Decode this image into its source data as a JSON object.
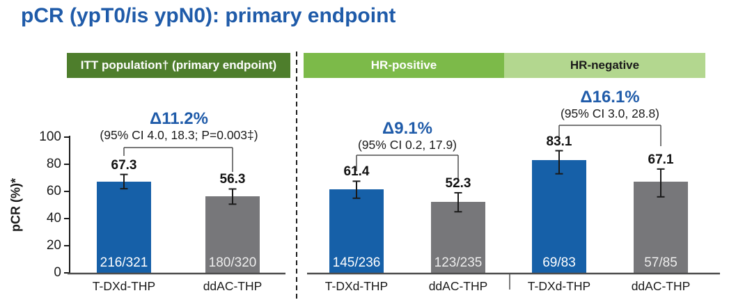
{
  "page": {
    "title": "pCR (ypT0/is ypN0): primary endpoint"
  },
  "panels": [
    {
      "id": "itt",
      "label": "ITT population† (primary endpoint)",
      "color": "#4e7e2c",
      "text_color": "#ffffff"
    },
    {
      "id": "hr-positive",
      "label": "HR-positive",
      "color": "#7cba49",
      "text_color": "#ffffff"
    },
    {
      "id": "hr-negative",
      "label": "HR-negative",
      "color": "#b3d78f",
      "text_color": "#1a1a1a"
    }
  ],
  "colors": {
    "accent_blue": "#1f5ba9",
    "bar_blue": "#1660a8",
    "bar_gray": "#77777a",
    "axis": "#1a1a1a",
    "baseline": "#4d4d4d",
    "bracket": "#4d4d4d",
    "error_bar": "#1a1a1a",
    "count_text_on_blue": "#ffffff",
    "count_text_on_gray": "#ededed"
  },
  "chart_data": {
    "type": "bar",
    "title": "pCR (ypT0/is ypN0): primary endpoint",
    "ylabel": "pCR (%)*",
    "xlabel": "",
    "ylim": [
      0,
      100
    ],
    "yticks": [
      0,
      20,
      40,
      60,
      80,
      100
    ],
    "grid": false,
    "series_legend": [
      "T-DXd-THP",
      "ddAC-THP"
    ],
    "groups": [
      {
        "panel": "ITT population† (primary endpoint)",
        "delta": "Δ11.2%",
        "ci": "(95% CI 4.0, 18.3; P=0.003‡)",
        "bars": [
          {
            "label": "T-DXd-THP",
            "value": 67.3,
            "count": "216/321",
            "ci_low": 62.0,
            "ci_high": 72.5,
            "series": "T-DXd-THP"
          },
          {
            "label": "ddAC-THP",
            "value": 56.3,
            "count": "180/320",
            "ci_low": 50.6,
            "ci_high": 61.8,
            "series": "ddAC-THP"
          }
        ]
      },
      {
        "panel": "HR-positive",
        "delta": "Δ9.1%",
        "ci": "(95% CI 0.2, 17.9)",
        "bars": [
          {
            "label": "T-DXd-THP",
            "value": 61.4,
            "count": "145/236",
            "ci_low": 55.0,
            "ci_high": 67.5,
            "series": "T-DXd-THP"
          },
          {
            "label": "ddAC-THP",
            "value": 52.3,
            "count": "123/235",
            "ci_low": 45.0,
            "ci_high": 59.0,
            "series": "ddAC-THP"
          }
        ]
      },
      {
        "panel": "HR-negative",
        "delta": "Δ16.1%",
        "ci": "(95% CI 3.0, 28.8)",
        "bars": [
          {
            "label": "T-DXd-THP",
            "value": 83.1,
            "count": "69/83",
            "ci_low": 73.0,
            "ci_high": 90.0,
            "series": "T-DXd-THP"
          },
          {
            "label": "ddAC-THP",
            "value": 67.1,
            "count": "57/85",
            "ci_low": 56.0,
            "ci_high": 76.5,
            "series": "ddAC-THP"
          }
        ]
      }
    ]
  }
}
